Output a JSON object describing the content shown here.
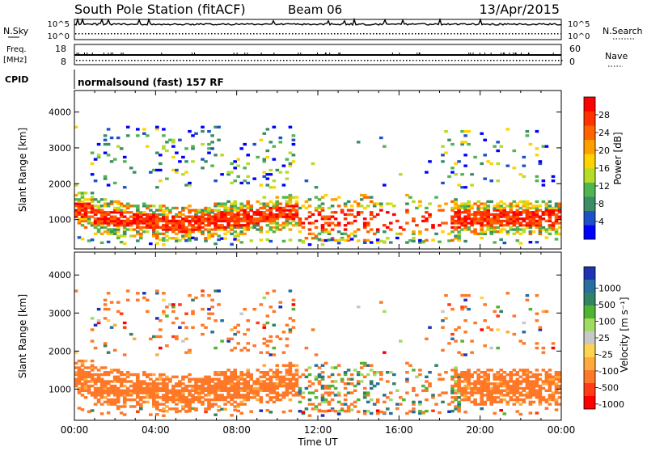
{
  "header": {
    "station": "South Pole Station (fitACF)",
    "beam": "Beam 06",
    "date": "13/Apr/2015"
  },
  "panels": {
    "nsky": {
      "label": "N.Sky",
      "ticks": [
        "10^5",
        "10^0"
      ]
    },
    "nsearch": {
      "label": "N.Search",
      "ticks": [
        "10^5",
        "10^0"
      ]
    },
    "freq": {
      "label_line1": "Freq.",
      "label_line2": "[MHz]",
      "ticks": [
        "18",
        "8"
      ]
    },
    "nave": {
      "label": "Nave",
      "ticks": [
        "60",
        "0"
      ]
    },
    "cpid": {
      "label": "CPID",
      "value": "normalsound (fast) 157 RF"
    }
  },
  "chart_data": [
    {
      "type": "heatmap",
      "name": "power",
      "ylabel": "Slant Range [km]",
      "xlabel": "Time UT",
      "ylim": [
        180,
        4600
      ],
      "yticks": [
        1000,
        2000,
        3000,
        4000
      ],
      "xlim": [
        0,
        24
      ],
      "xticks": [
        "00:00",
        "04:00",
        "08:00",
        "12:00",
        "16:00",
        "20:00",
        "00:00"
      ],
      "colorbar": {
        "label": "Power [dB]",
        "ticks": [
          "4",
          "8",
          "12",
          "16",
          "20",
          "24",
          "28"
        ],
        "colors": [
          "#0000ff",
          "#1e50c8",
          "#3c8c64",
          "#50b450",
          "#b4dc28",
          "#ffd200",
          "#ffa000",
          "#ff6400",
          "#ff3200",
          "#ff0000"
        ]
      }
    },
    {
      "type": "heatmap",
      "name": "velocity",
      "ylabel": "Slant Range [km]",
      "xlabel": "Time UT",
      "ylim": [
        180,
        4600
      ],
      "yticks": [
        1000,
        2000,
        3000,
        4000
      ],
      "xlim": [
        0,
        24
      ],
      "xticks": [
        "00:00",
        "04:00",
        "08:00",
        "12:00",
        "16:00",
        "20:00",
        "00:00"
      ],
      "colorbar": {
        "label": "Velocity [m s⁻¹]",
        "ticks": [
          "1000",
          "500",
          "100",
          "25",
          "-25",
          "-100",
          "-500",
          "-1000"
        ],
        "colors": [
          "#1e32b4",
          "#286ea0",
          "#328264",
          "#50b432",
          "#a0dc64",
          "#c8c8c8",
          "#ffd250",
          "#ffaa3c",
          "#ff7828",
          "#ff3c14",
          "#ff0000"
        ]
      }
    }
  ]
}
